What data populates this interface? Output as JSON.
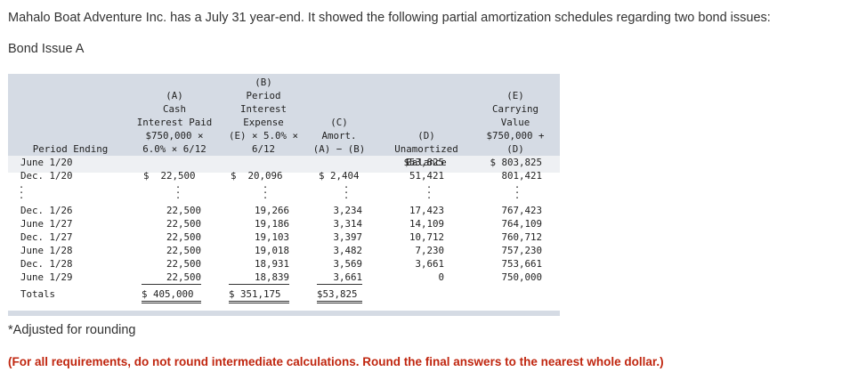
{
  "intro_text": "Mahalo Boat Adventure Inc. has a July 31 year-end. It showed the following partial amortization schedules regarding two bond issues:",
  "issue_label": "Bond Issue A",
  "headers": {
    "period": "Period Ending",
    "a": "(A)\nCash\nInterest Paid\n$750,000 ×\n6.0% × 6/12",
    "b": "(B)\nPeriod\nInterest\nExpense\n(E) × 5.0% ×\n6/12",
    "c": "(C)\nAmort.\n(A) − (B)",
    "d": "(D)\nUnamortized\nBalance",
    "e": "(E)\nCarrying\nValue\n$750,000 +\n(D)"
  },
  "rows": [
    {
      "period": "June 1/20",
      "a": "",
      "b": "",
      "c": "",
      "d": "$53,825",
      "e": "$ 803,825"
    },
    {
      "period": "Dec. 1/20",
      "a": "$  22,500",
      "b": "$  20,096",
      "c": "$ 2,404",
      "d": "51,421",
      "e": "801,421"
    },
    {
      "period": "Dec. 1/26",
      "a": "22,500",
      "b": "19,266",
      "c": "3,234",
      "d": "17,423",
      "e": "767,423"
    },
    {
      "period": "June 1/27",
      "a": "22,500",
      "b": "19,186",
      "c": "3,314",
      "d": "14,109",
      "e": "764,109"
    },
    {
      "period": "Dec. 1/27",
      "a": "22,500",
      "b": "19,103",
      "c": "3,397",
      "d": "10,712",
      "e": "760,712"
    },
    {
      "period": "June 1/28",
      "a": "22,500",
      "b": "19,018",
      "c": "3,482",
      "d": "7,230",
      "e": "757,230"
    },
    {
      "period": "Dec. 1/28",
      "a": "22,500",
      "b": "18,931",
      "c": "3,569",
      "d": "3,661",
      "e": "753,661"
    },
    {
      "period": "June 1/29",
      "a": "22,500",
      "b": "18,839",
      "c": "3,661",
      "d": "0",
      "e": "750,000"
    }
  ],
  "totals": {
    "label": "Totals",
    "a": "$ 405,000",
    "b": "$ 351,175",
    "c": "$53,825"
  },
  "footnote": "*Adjusted for rounding",
  "instructions": "(For all requirements, do not round intermediate calculations. Round the final answers to the nearest whole dollar.)"
}
